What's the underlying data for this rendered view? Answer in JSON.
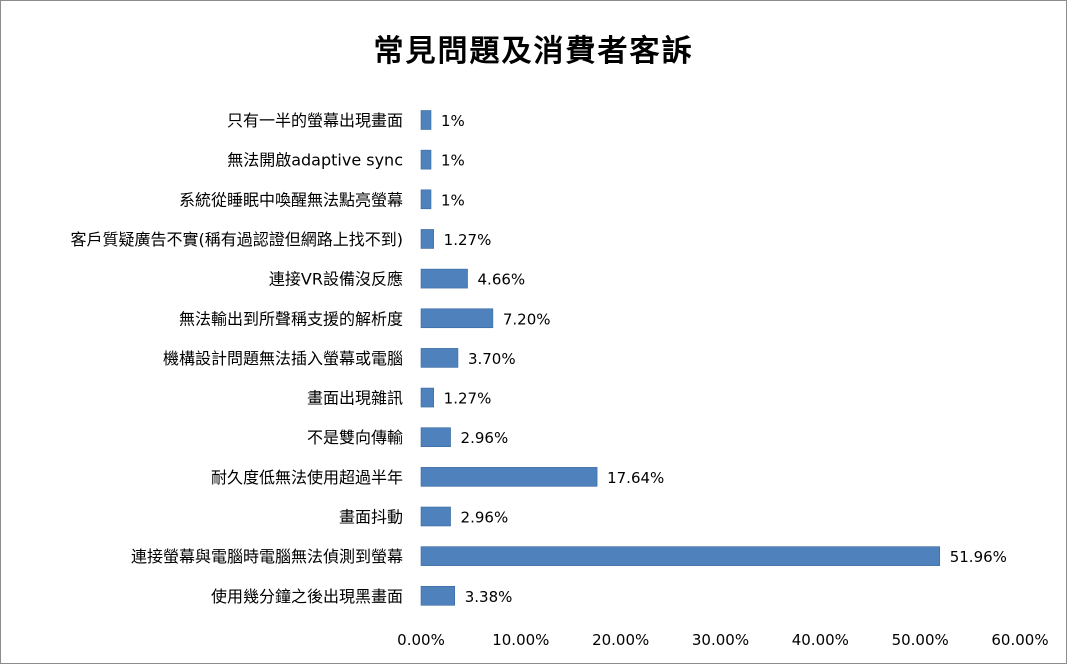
{
  "chart_data": {
    "type": "bar",
    "orientation": "horizontal",
    "title": "常見問題及消費者客訴",
    "categories": [
      "只有一半的螢幕出現畫面",
      "無法開啟adaptive sync",
      "系統從睡眠中喚醒無法點亮螢幕",
      "客戶質疑廣告不實(稱有過認證但網路上找不到)",
      "連接VR設備沒反應",
      "無法輸出到所聲稱支援的解析度",
      "機構設計問題無法插入螢幕或電腦",
      "畫面出現雜訊",
      "不是雙向傳輸",
      "耐久度低無法使用超過半年",
      "畫面抖動",
      "連接螢幕與電腦時電腦無法偵測到螢幕",
      "使用幾分鐘之後出現黑畫面"
    ],
    "values": [
      1,
      1,
      1,
      1.27,
      4.66,
      7.2,
      3.7,
      1.27,
      2.96,
      17.64,
      2.96,
      51.96,
      3.38
    ],
    "value_labels": [
      "1%",
      "1%",
      "1%",
      "1.27%",
      "4.66%",
      "7.20%",
      "3.70%",
      "1.27%",
      "2.96%",
      "17.64%",
      "2.96%",
      "51.96%",
      "3.38%"
    ],
    "xlim": [
      0,
      60
    ],
    "xticks": [
      "0.00%",
      "10.00%",
      "20.00%",
      "30.00%",
      "40.00%",
      "50.00%",
      "60.00%"
    ],
    "bar_color": "#4f81bd",
    "grid": false,
    "legend": "none"
  }
}
